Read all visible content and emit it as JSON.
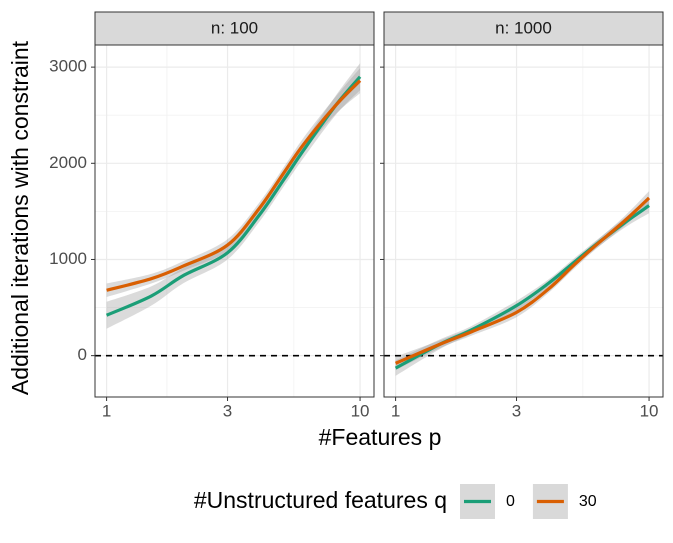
{
  "x_label": "#Features p",
  "y_label": "Additional iterations with constraint",
  "legend_title": "#Unstructured features q",
  "chart_data": [
    {
      "type": "line",
      "title": "n: 100",
      "log_x": true,
      "grid": true,
      "hline": 0,
      "xlim": [
        0.9,
        11.35
      ],
      "xticks": [
        1,
        3,
        10
      ],
      "xminor": [
        1.73,
        5.48
      ],
      "ylim": [
        -430,
        3230
      ],
      "yticks": [
        0,
        1000,
        2000,
        3000
      ],
      "yminor": [
        500,
        1500,
        2500
      ],
      "x": [
        1,
        1.5,
        2,
        3,
        4,
        5,
        6,
        8,
        10
      ],
      "series": [
        {
          "name": "0",
          "color": "#1b9e77",
          "values": [
            420,
            620,
            830,
            1070,
            1460,
            1830,
            2140,
            2600,
            2900
          ],
          "lower": [
            280,
            520,
            750,
            1000,
            1390,
            1760,
            2060,
            2500,
            2760
          ],
          "upper": [
            560,
            720,
            910,
            1140,
            1530,
            1900,
            2220,
            2700,
            3040
          ]
        },
        {
          "name": "30",
          "color": "#d95f02",
          "values": [
            680,
            800,
            930,
            1150,
            1530,
            1900,
            2200,
            2600,
            2860
          ],
          "lower": [
            610,
            750,
            880,
            1090,
            1470,
            1840,
            2130,
            2510,
            2730
          ],
          "upper": [
            750,
            850,
            980,
            1210,
            1590,
            1960,
            2270,
            2690,
            2990
          ]
        }
      ]
    },
    {
      "type": "line",
      "title": "n: 1000",
      "log_x": true,
      "grid": true,
      "hline": 0,
      "xlim": [
        0.9,
        11.35
      ],
      "xticks": [
        1,
        3,
        10
      ],
      "xminor": [
        1.73,
        5.48
      ],
      "ylim": [
        -430,
        3230
      ],
      "yticks": [
        0,
        1000,
        2000,
        3000
      ],
      "yminor": [
        500,
        1500,
        2500
      ],
      "x": [
        1,
        1.5,
        2,
        3,
        4,
        5,
        6,
        8,
        10
      ],
      "series": [
        {
          "name": "0",
          "color": "#1b9e77",
          "values": [
            -130,
            120,
            270,
            520,
            750,
            960,
            1130,
            1380,
            1560
          ],
          "lower": [
            -210,
            70,
            230,
            470,
            710,
            920,
            1090,
            1330,
            1480
          ],
          "upper": [
            -50,
            170,
            310,
            570,
            790,
            1000,
            1170,
            1430,
            1640
          ]
        },
        {
          "name": "30",
          "color": "#d95f02",
          "values": [
            -80,
            120,
            250,
            450,
            690,
            930,
            1120,
            1400,
            1640
          ],
          "lower": [
            -150,
            80,
            210,
            400,
            650,
            890,
            1080,
            1350,
            1570
          ],
          "upper": [
            -10,
            160,
            290,
            500,
            730,
            970,
            1160,
            1450,
            1710
          ]
        }
      ]
    }
  ]
}
